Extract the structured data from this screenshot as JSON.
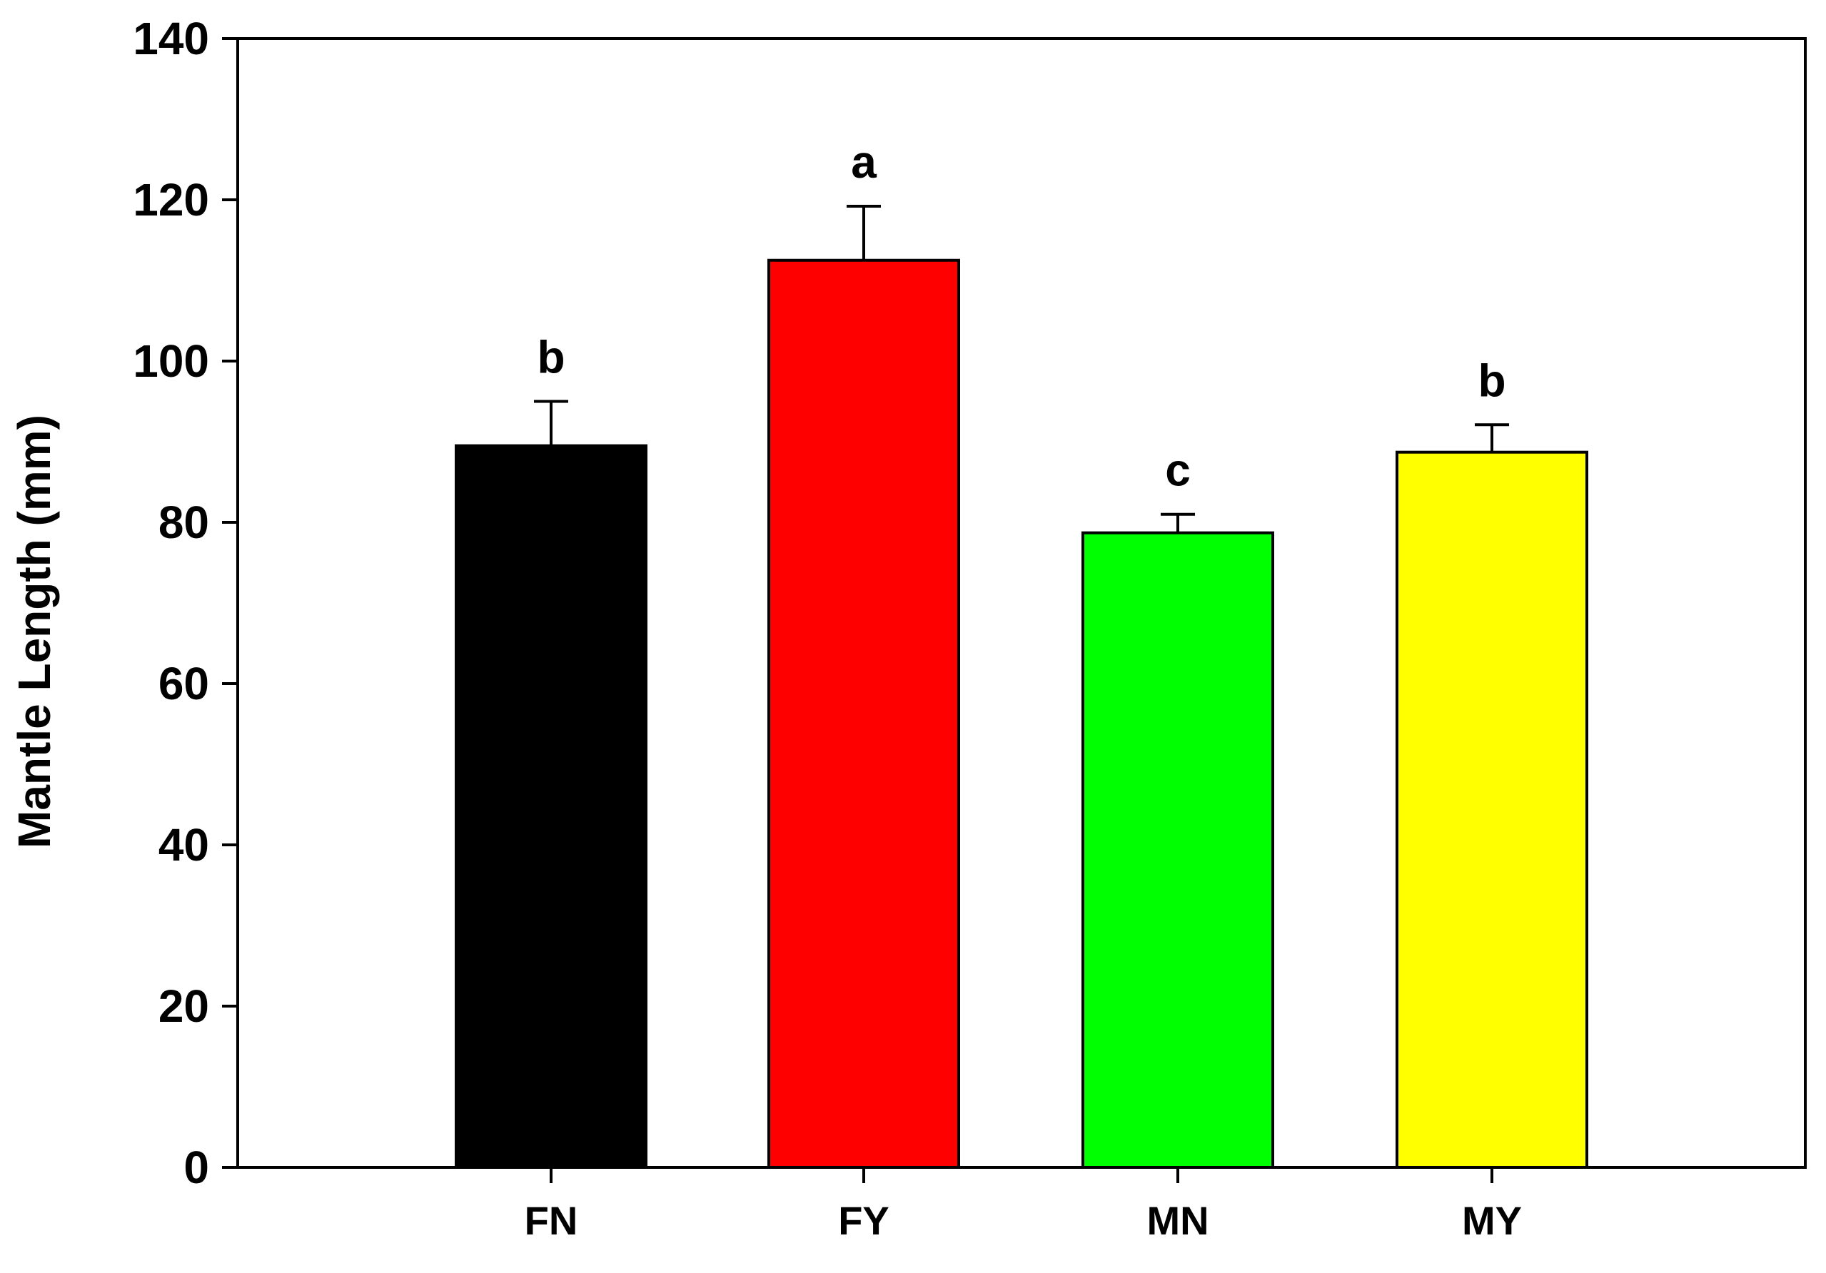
{
  "chart_data": {
    "type": "bar",
    "title": "",
    "xlabel": "",
    "ylabel": "Mantle Length (mm)",
    "ylim": [
      0,
      140
    ],
    "yticks": [
      0,
      20,
      40,
      60,
      80,
      100,
      120,
      140
    ],
    "grid": false,
    "categories": [
      "FN",
      "FY",
      "MN",
      "MY"
    ],
    "values": [
      89.5,
      112.5,
      78.7,
      88.7
    ],
    "errors": [
      5.5,
      6.7,
      2.3,
      3.4
    ],
    "significance": [
      "b",
      "a",
      "c",
      "b"
    ],
    "colors": [
      "#000000",
      "#ff0000",
      "#00ff00",
      "#ffff00"
    ]
  }
}
